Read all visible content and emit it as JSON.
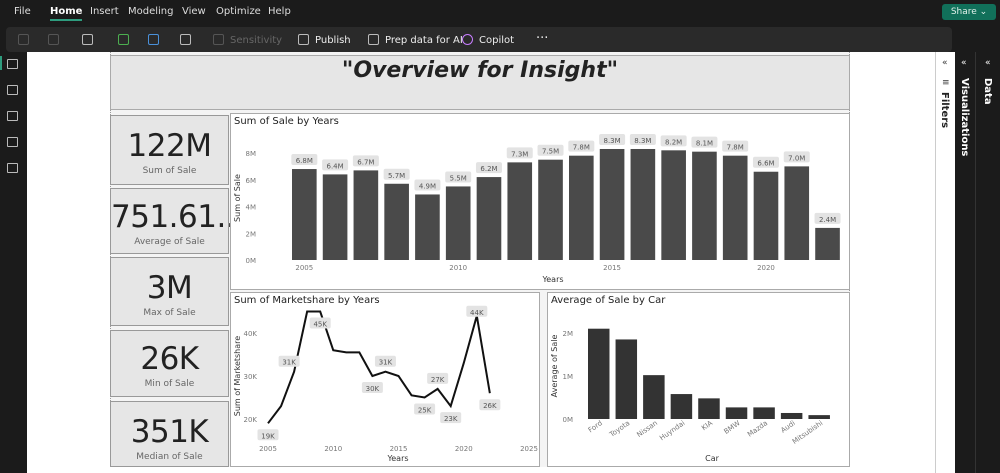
{
  "menu": [
    "File",
    "Home",
    "Insert",
    "Modeling",
    "View",
    "Optimize",
    "Help"
  ],
  "active_menu": "Home",
  "share": "Share ⌄",
  "ribbon": {
    "sensitivity": "Sensitivity",
    "publish": "Publish",
    "prep": "Prep data for AI",
    "copilot": "Copilot",
    "more": "···"
  },
  "panes": {
    "filters": "Filters",
    "visualizations": "Visualizations",
    "data": "Data"
  },
  "report": {
    "title": "\"Overview for Insight\""
  },
  "kpis": [
    {
      "value": "122M",
      "label": "Sum of Sale"
    },
    {
      "value": "751.61...",
      "label": "Average of Sale"
    },
    {
      "value": "3M",
      "label": "Max of Sale"
    },
    {
      "value": "26K",
      "label": "Min of Sale"
    },
    {
      "value": "351K",
      "label": "Median of Sale"
    }
  ],
  "chart_data": [
    {
      "type": "bar",
      "title": "Sum of Sale by Years",
      "xlabel": "Years",
      "ylabel": "Sum of Sale",
      "ylim": [
        0,
        8
      ],
      "yunit": "M",
      "yticks": [
        "0M",
        "2M",
        "4M",
        "6M",
        "8M"
      ],
      "xticks": [
        "2005",
        "2010",
        "2015",
        "2020"
      ],
      "categories": [
        2005,
        2006,
        2007,
        2008,
        2009,
        2010,
        2011,
        2012,
        2013,
        2014,
        2015,
        2016,
        2017,
        2018,
        2019,
        2020,
        2021,
        2022
      ],
      "values": [
        6.8,
        6.4,
        6.7,
        5.7,
        4.9,
        5.5,
        6.2,
        7.3,
        7.5,
        7.8,
        8.3,
        8.3,
        8.2,
        8.1,
        7.8,
        6.6,
        7.0,
        2.4
      ],
      "labels": [
        "6.8M",
        "6.4M",
        "6.7M",
        "5.7M",
        "4.9M",
        "5.5M",
        "6.2M",
        "7.3M",
        "7.5M",
        "7.8M",
        "8.3M",
        "8.3M",
        "8.2M",
        "8.1M",
        "7.8M",
        "6.6M",
        "7.0M",
        "2.4M"
      ]
    },
    {
      "type": "line",
      "title": "Sum of Marketshare by Years",
      "xlabel": "Years",
      "ylabel": "Sum of Marketshare",
      "xlim": [
        2005,
        2025
      ],
      "ylim": [
        17,
        47
      ],
      "yticks": [
        "20K",
        "30K",
        "40K"
      ],
      "xticks": [
        "2005",
        "2010",
        "2015",
        "2020",
        "2025"
      ],
      "x": [
        2005,
        2006,
        2007,
        2008,
        2009,
        2010,
        2011,
        2012,
        2013,
        2014,
        2015,
        2016,
        2017,
        2018,
        2019,
        2020,
        2021,
        2022
      ],
      "values": [
        19,
        23,
        31,
        45,
        45,
        36,
        35.5,
        35.5,
        30,
        31,
        30,
        25.5,
        25,
        27,
        23,
        33,
        44,
        26
      ],
      "labels": [
        {
          "x": 2005,
          "text": "19K",
          "v": 19
        },
        {
          "x": 2007,
          "text": "31K",
          "v": 31
        },
        {
          "x": 2009,
          "text": "45K",
          "v": 45
        },
        {
          "x": 2013,
          "text": "30K",
          "v": 30
        },
        {
          "x": 2014,
          "text": "31K",
          "v": 31
        },
        {
          "x": 2017,
          "text": "25K",
          "v": 25
        },
        {
          "x": 2018,
          "text": "27K",
          "v": 27
        },
        {
          "x": 2019,
          "text": "23K",
          "v": 23
        },
        {
          "x": 2021,
          "text": "44K",
          "v": 44
        },
        {
          "x": 2022,
          "text": "26K",
          "v": 26
        }
      ]
    },
    {
      "type": "bar",
      "title": "Average of Sale by Car",
      "xlabel": "Car",
      "ylabel": "Average of Sale",
      "ylim": [
        0,
        2.5
      ],
      "yticks": [
        "0M",
        "1M",
        "2M"
      ],
      "categories": [
        "Ford",
        "Toyota",
        "Nissan",
        "Huyndai",
        "KIA",
        "BMW",
        "Mazda",
        "Audi",
        "Mitsubishi"
      ],
      "values": [
        2.1,
        1.85,
        1.02,
        0.58,
        0.48,
        0.27,
        0.27,
        0.14,
        0.09
      ]
    }
  ],
  "colors": {
    "bar": "#4a4a4a",
    "bar2": "#333333",
    "accent": "#11705a",
    "label_bg": "#e3e3e3"
  }
}
